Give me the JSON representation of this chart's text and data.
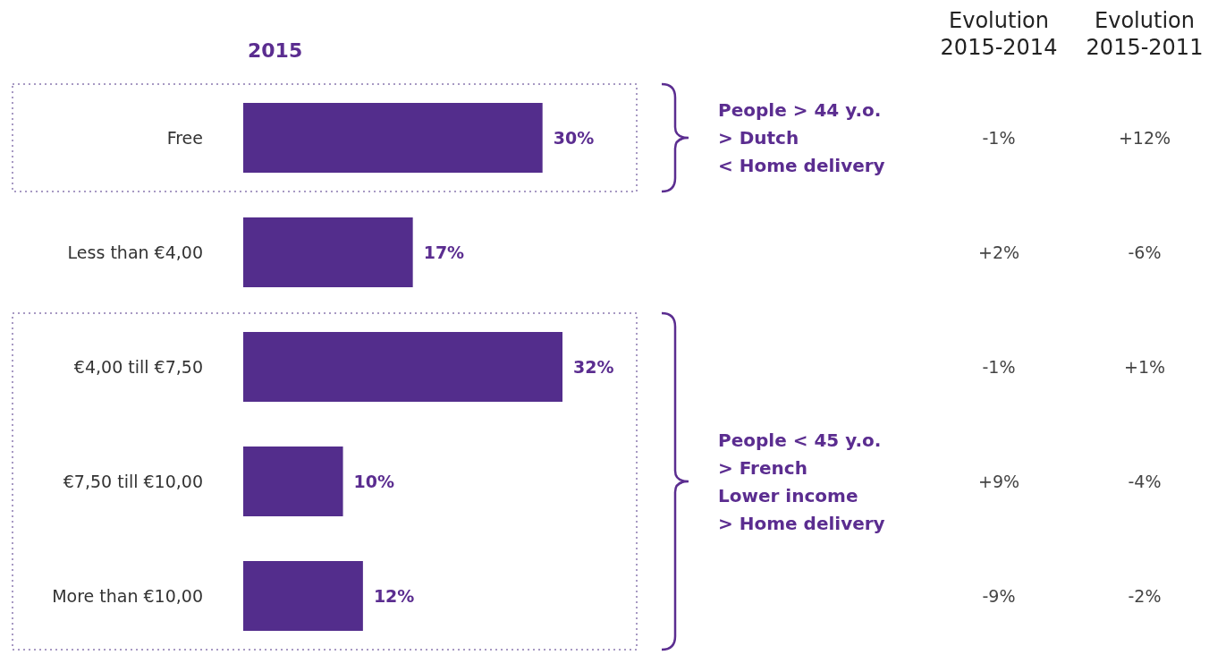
{
  "chart_data": {
    "type": "bar",
    "orientation": "horizontal",
    "title": "2015",
    "categories": [
      "Free",
      "Less than €4,00",
      "€4,00 till €7,50",
      "€7,50 till €10,00",
      "More than €10,00"
    ],
    "values": [
      30,
      17,
      32,
      10,
      12
    ],
    "value_labels": [
      "30%",
      "17%",
      "32%",
      "10%",
      "12%"
    ],
    "color": "#532d8c",
    "tick_labels": "y",
    "annotations": [
      "Evolution\n2015-2014",
      "Evolution\n2015-2011",
      "People > 44 y.o.\n> Dutch\n< Home delivery",
      "People < 45 y.o.\n> French\nLower income\n> Home delivery",
      "-1%",
      "+12%",
      "+2%",
      "-6%",
      "-1%",
      "+1%",
      "+9%",
      "-4%",
      "-9%",
      "-2%"
    ]
  }
}
